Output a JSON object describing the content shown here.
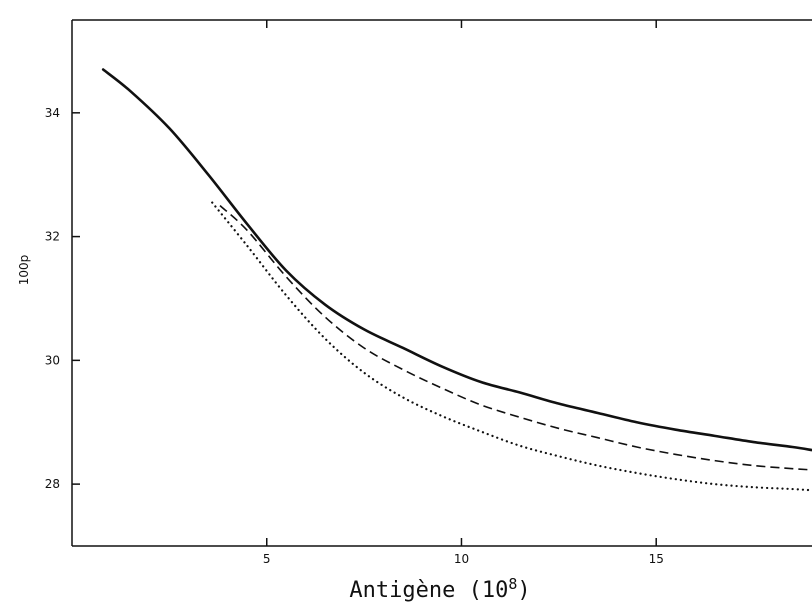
{
  "chart_data": {
    "type": "line",
    "title": "",
    "xlabel_main": "Antigène (10",
    "xlabel_exp": "8",
    "xlabel_close": ")",
    "ylabel": "100p",
    "xlim": [
      0,
      19
    ],
    "ylim": [
      27,
      35.5
    ],
    "xticks": [
      {
        "value": 5,
        "label": "5"
      },
      {
        "value": 10,
        "label": "10"
      },
      {
        "value": 15,
        "label": "15"
      }
    ],
    "yticks": [
      {
        "value": 28,
        "label": "28"
      },
      {
        "value": 30,
        "label": "30"
      },
      {
        "value": 32,
        "label": "32"
      },
      {
        "value": 34,
        "label": "34"
      }
    ],
    "grid": false,
    "series": [
      {
        "style": "solid",
        "x": [
          0.8,
          1.5,
          2.5,
          3.5,
          4.5,
          5.5,
          6.5,
          7.5,
          8.5,
          9.5,
          10.5,
          11.5,
          12.5,
          13.5,
          14.5,
          15.5,
          16.5,
          17.5,
          18.5,
          19.0
        ],
        "y": [
          34.7,
          34.35,
          33.75,
          33.0,
          32.2,
          31.45,
          30.9,
          30.5,
          30.2,
          29.9,
          29.65,
          29.48,
          29.3,
          29.15,
          29.0,
          28.88,
          28.78,
          28.68,
          28.6,
          28.55
        ]
      },
      {
        "style": "dashed",
        "x": [
          3.8,
          4.5,
          5.5,
          6.5,
          7.5,
          8.5,
          9.5,
          10.5,
          11.5,
          12.5,
          13.5,
          14.5,
          15.5,
          16.5,
          17.5,
          18.5,
          19.0
        ],
        "y": [
          32.5,
          32.1,
          31.35,
          30.7,
          30.2,
          29.85,
          29.55,
          29.28,
          29.08,
          28.9,
          28.75,
          28.6,
          28.48,
          28.38,
          28.3,
          28.25,
          28.23
        ]
      },
      {
        "style": "dotted",
        "x": [
          3.6,
          4.5,
          5.5,
          6.5,
          7.5,
          8.5,
          9.5,
          10.5,
          11.5,
          12.5,
          13.5,
          14.5,
          15.5,
          16.5,
          17.5,
          18.5,
          19.0
        ],
        "y": [
          32.55,
          31.85,
          31.05,
          30.35,
          29.8,
          29.4,
          29.1,
          28.85,
          28.62,
          28.45,
          28.3,
          28.18,
          28.08,
          28.0,
          27.95,
          27.92,
          27.9
        ]
      }
    ]
  }
}
